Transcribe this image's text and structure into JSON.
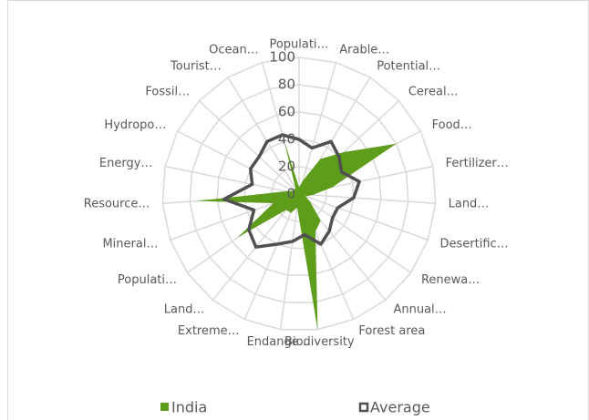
{
  "chart_data": {
    "type": "radar",
    "categories": [
      "Populati…",
      "Arable…",
      "Potential…",
      "Cereal…",
      "Food…",
      "Fertilizer…",
      "Land…",
      "Desertific…",
      "Renewa…",
      "Annual…",
      "Forest area",
      "Biodiversity",
      "Endange…",
      "Extreme…",
      "Land…",
      "Populati…",
      "Mineral…",
      "Resource…",
      "Energy…",
      "Hydropo…",
      "Fossil…",
      "Tourist…",
      "Ocean…"
    ],
    "series": [
      {
        "name": "India",
        "color": "#5e9c1c",
        "values": [
          5,
          10,
          30,
          45,
          80,
          25,
          10,
          5,
          10,
          25,
          30,
          100,
          10,
          15,
          15,
          55,
          20,
          75,
          10,
          5,
          5,
          5,
          40
        ]
      },
      {
        "name": "Average",
        "color": "#505050",
        "values": [
          40,
          35,
          45,
          40,
          35,
          45,
          40,
          30,
          30,
          35,
          40,
          30,
          35,
          40,
          50,
          45,
          35,
          55,
          35,
          40,
          40,
          45,
          45
        ]
      }
    ],
    "ylim": [
      0,
      100
    ],
    "yticks": [
      0,
      20,
      40,
      60,
      80,
      100
    ],
    "grid": true,
    "legend": "bottom"
  }
}
